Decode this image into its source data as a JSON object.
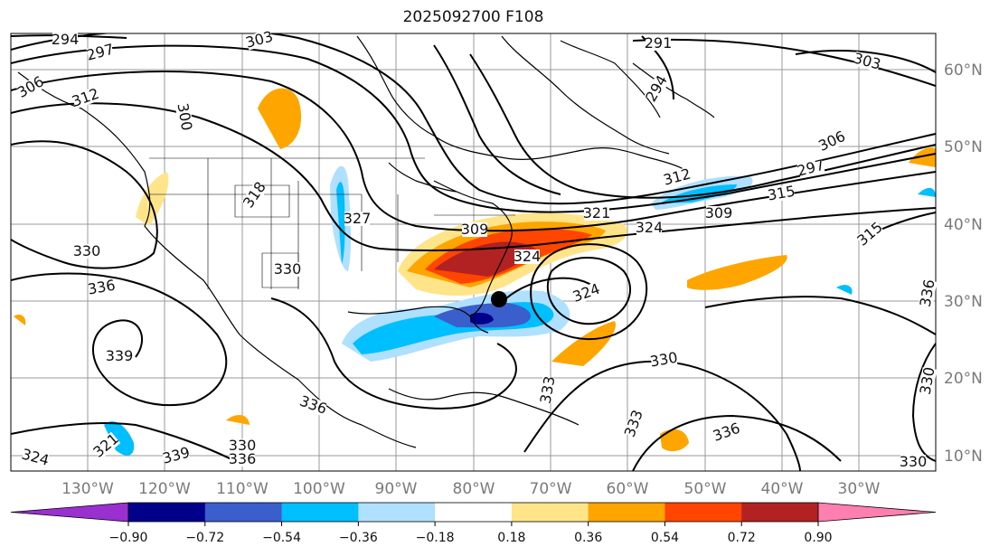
{
  "title": "2025092700 F108",
  "map": {
    "lon_ticks": [
      "130°W",
      "120°W",
      "110°W",
      "100°W",
      "90°W",
      "80°W",
      "70°W",
      "60°W",
      "50°W",
      "40°W",
      "30°W"
    ],
    "lat_ticks": [
      "60°N",
      "50°N",
      "40°N",
      "30°N",
      "20°N",
      "10°N"
    ],
    "contour_labels": [
      "294",
      "297",
      "303",
      "291",
      "294",
      "303",
      "306",
      "312",
      "300",
      "306",
      "297",
      "312",
      "315",
      "309",
      "321",
      "324",
      "315",
      "318",
      "327",
      "309",
      "324",
      "330",
      "336",
      "330",
      "324",
      "330",
      "339",
      "336",
      "330",
      "333",
      "336",
      "333",
      "321",
      "336",
      "330",
      "324",
      "339",
      "336",
      "330"
    ],
    "marker": "storm-center-dot"
  },
  "colorbar": {
    "colors": [
      "#9b30d0",
      "#00008b",
      "#3a5fcd",
      "#00bfff",
      "#b0e0ff",
      "#ffffff",
      "#ffe48a",
      "#ffa500",
      "#ff4500",
      "#b22222",
      "#ff7fb0"
    ],
    "ticks": [
      "−0.90",
      "−0.72",
      "−0.54",
      "−0.36",
      "−0.18",
      "0.18",
      "0.36",
      "0.54",
      "0.72",
      "0.90"
    ]
  }
}
